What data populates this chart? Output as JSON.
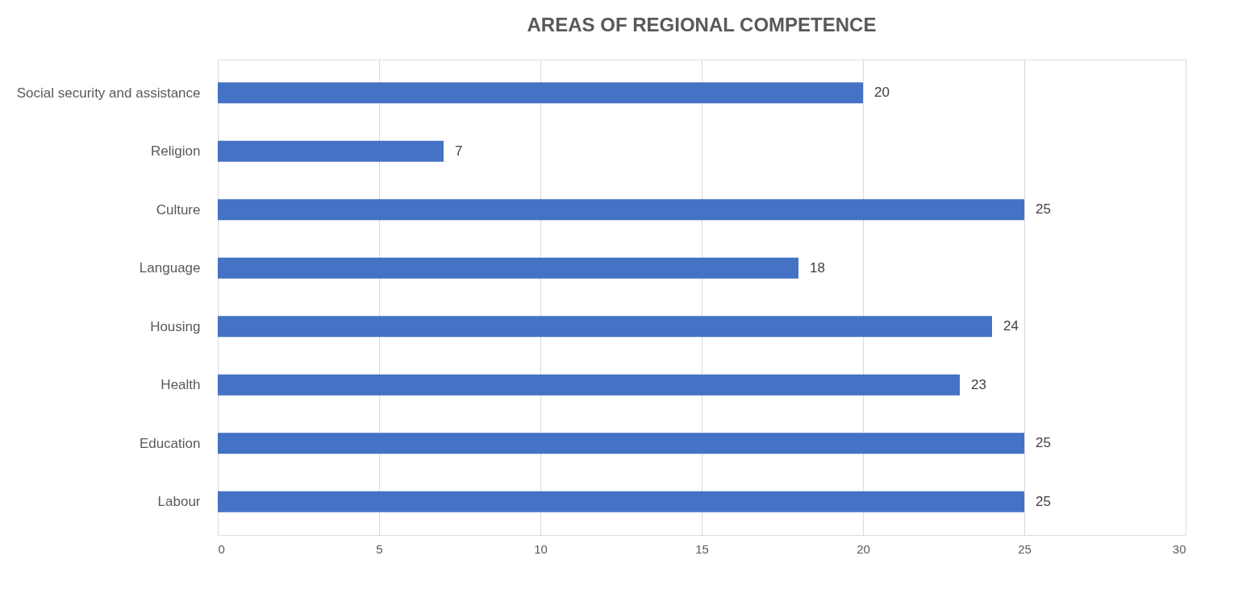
{
  "chart_data": {
    "type": "bar",
    "title": "AREAS OF REGIONAL COMPETENCE",
    "orientation": "horizontal",
    "categories": [
      "Social security and assistance",
      "Religion",
      "Culture",
      "Language",
      "Housing",
      "Health",
      "Education",
      "Labour"
    ],
    "values": [
      20,
      7,
      25,
      18,
      24,
      23,
      25,
      25
    ],
    "color": "#4472c4",
    "xlim": [
      0,
      30
    ],
    "xticks": [
      0,
      5,
      10,
      15,
      20,
      25,
      30
    ],
    "grid": "x",
    "data_labels": true
  }
}
